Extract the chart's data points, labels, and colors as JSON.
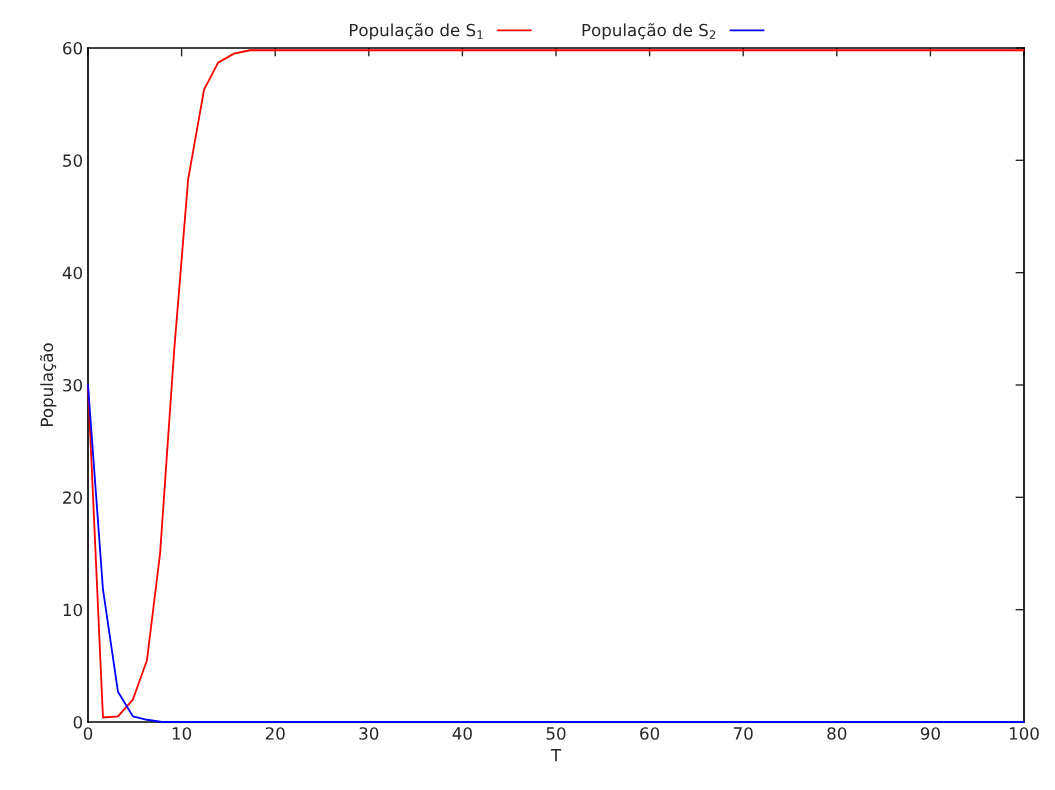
{
  "chart_data": {
    "type": "line",
    "xlabel": "T",
    "ylabel": "População",
    "legend": "top",
    "grid": false,
    "xlim": [
      0,
      100
    ],
    "ylim": [
      0,
      60
    ],
    "xticks": [
      0,
      10,
      20,
      30,
      40,
      50,
      60,
      70,
      80,
      90,
      100
    ],
    "yticks": [
      0,
      10,
      20,
      30,
      40,
      50,
      60
    ],
    "series": [
      {
        "name": "População de S$_{1}$",
        "color": "#ff0000",
        "x": [
          0,
          1.6,
          3.2,
          4.8,
          6.3,
          7.7,
          9.2,
          10.7,
          12.4,
          13.9,
          15.6,
          17.3,
          20,
          100
        ],
        "values": [
          30,
          0.4,
          0.5,
          2,
          5.5,
          15,
          33,
          48.3,
          56.3,
          58.7,
          59.5,
          59.8,
          59.8,
          59.8
        ]
      },
      {
        "name": "População de S$_{2}$",
        "color": "#0000ff",
        "x": [
          0,
          1.6,
          3.2,
          4.8,
          6.3,
          7.9,
          10,
          100
        ],
        "values": [
          30,
          11.8,
          2.7,
          0.5,
          0.2,
          0,
          0,
          0
        ]
      }
    ]
  }
}
